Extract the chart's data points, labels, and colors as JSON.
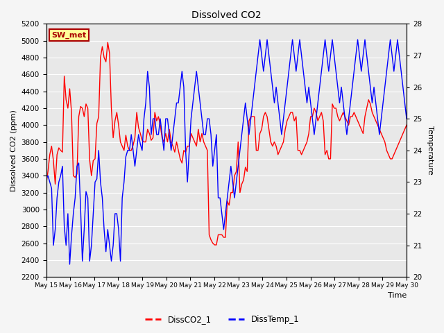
{
  "title": "Dissolved CO2",
  "xlabel": "Time",
  "ylabel_left": "Dissolved CO2 (ppm)",
  "ylabel_right": "Temperature",
  "legend_label": "SW_met",
  "series1_label": "DissCO2_1",
  "series2_label": "DissTemp_1",
  "series1_color": "#FF0000",
  "series2_color": "#0000FF",
  "ylim_left": [
    2200,
    5200
  ],
  "ylim_right": [
    20.0,
    28.0
  ],
  "yticks_left": [
    2200,
    2400,
    2600,
    2800,
    3000,
    3200,
    3400,
    3600,
    3800,
    4000,
    4200,
    4400,
    4600,
    4800,
    5000,
    5200
  ],
  "yticks_right": [
    20.0,
    21.0,
    22.0,
    23.0,
    24.0,
    25.0,
    26.0,
    27.0,
    28.0
  ],
  "background_color": "#e8e8e8",
  "grid_color": "#ffffff",
  "co2_data": [
    3300,
    3450,
    3650,
    3750,
    3580,
    3300,
    3650,
    3730,
    3700,
    3680,
    4580,
    4300,
    4200,
    4430,
    4150,
    3400,
    3380,
    3420,
    4100,
    4220,
    4200,
    4100,
    4250,
    4200,
    3590,
    3400,
    3580,
    3600,
    4020,
    4100,
    4800,
    4930,
    4800,
    4750,
    4980,
    4850,
    4200,
    3850,
    4050,
    4150,
    4000,
    3800,
    3750,
    3700,
    3880,
    3750,
    3700,
    3700,
    3760,
    3850,
    4150,
    3970,
    3900,
    3820,
    3800,
    3800,
    3950,
    3900,
    3820,
    3850,
    4150,
    4050,
    4100,
    4000,
    3850,
    3800,
    3900,
    3800,
    3950,
    3800,
    3750,
    3680,
    3800,
    3700,
    3600,
    3550,
    3700,
    3680,
    3750,
    3750,
    3900,
    3850,
    3800,
    3750,
    3950,
    3800,
    3900,
    3800,
    3750,
    3700,
    2700,
    2640,
    2600,
    2580,
    2580,
    2700,
    2700,
    2700,
    2670,
    2670,
    3100,
    3050,
    3200,
    3200,
    3400,
    3450,
    3800,
    3200,
    3300,
    3350,
    3500,
    3450,
    4050,
    4100,
    4100,
    4100,
    3700,
    3700,
    3900,
    3950,
    4100,
    4150,
    4100,
    3950,
    3800,
    3750,
    3800,
    3750,
    3650,
    3700,
    3750,
    3800,
    3950,
    4050,
    4100,
    4150,
    4150,
    4050,
    4100,
    3700,
    3700,
    3650,
    3700,
    3750,
    3800,
    3900,
    4100,
    4100,
    4200,
    4150,
    4050,
    4100,
    4150,
    4050,
    3650,
    3700,
    3600,
    3600,
    4250,
    4200,
    4200,
    4100,
    4050,
    4100,
    4150,
    4100,
    4050,
    4000,
    4100,
    4100,
    4150,
    4100,
    4050,
    4000,
    3950,
    3900,
    4100,
    4200,
    4300,
    4250,
    4150,
    4100,
    4050,
    4000,
    3950,
    3900,
    3850,
    3800,
    3700,
    3650,
    3600,
    3600,
    3650,
    3700,
    3750,
    3800,
    3850,
    3900,
    3950,
    4000
  ],
  "temp_data": [
    23.1,
    23.2,
    23.0,
    22.8,
    21.0,
    21.5,
    22.5,
    23.0,
    23.2,
    23.5,
    21.6,
    21.0,
    22.0,
    20.4,
    21.3,
    22.0,
    22.5,
    23.5,
    23.6,
    22.2,
    20.5,
    21.5,
    22.7,
    22.5,
    20.5,
    21.0,
    22.0,
    23.0,
    23.1,
    24.0,
    23.0,
    22.5,
    21.5,
    20.8,
    21.5,
    21.0,
    20.5,
    21.0,
    22.0,
    22.0,
    21.5,
    20.5,
    22.5,
    23.0,
    23.8,
    24.0,
    24.0,
    24.5,
    24.0,
    23.5,
    24.0,
    24.5,
    24.2,
    24.0,
    25.0,
    25.5,
    26.5,
    26.0,
    24.5,
    25.0,
    25.0,
    24.5,
    24.5,
    25.0,
    24.5,
    24.0,
    25.0,
    25.0,
    24.5,
    24.0,
    24.5,
    25.0,
    25.5,
    25.5,
    26.0,
    26.5,
    26.0,
    24.0,
    23.0,
    24.0,
    25.0,
    25.5,
    26.0,
    26.5,
    26.0,
    25.5,
    25.0,
    24.5,
    24.5,
    25.0,
    25.0,
    24.5,
    23.5,
    24.0,
    24.5,
    22.5,
    22.5,
    22.0,
    21.5,
    22.0,
    22.5,
    23.0,
    23.5,
    23.0,
    22.5,
    23.0,
    23.5,
    24.0,
    24.5,
    25.0,
    25.5,
    25.0,
    24.5,
    25.0,
    25.5,
    26.0,
    26.5,
    27.0,
    27.5,
    27.0,
    26.5,
    27.0,
    27.5,
    27.0,
    26.5,
    26.0,
    25.5,
    26.0,
    25.5,
    25.0,
    24.5,
    25.0,
    25.5,
    26.0,
    26.5,
    27.0,
    27.5,
    27.0,
    26.5,
    27.0,
    27.5,
    27.0,
    26.5,
    26.0,
    25.5,
    26.0,
    25.5,
    25.0,
    24.5,
    25.0,
    25.5,
    26.0,
    26.5,
    27.0,
    27.5,
    27.0,
    26.5,
    27.0,
    27.5,
    27.0,
    26.5,
    26.0,
    25.5,
    26.0,
    25.5,
    25.0,
    24.5,
    25.0,
    25.5,
    26.0,
    26.5,
    27.0,
    27.5,
    27.0,
    26.5,
    27.0,
    27.5,
    27.0,
    26.5,
    26.0,
    25.5,
    26.0,
    25.5,
    25.0,
    24.5,
    25.0,
    25.5,
    26.0,
    26.5,
    27.0,
    27.5,
    27.0,
    26.5,
    27.0,
    27.5,
    27.0,
    26.5,
    26.0,
    25.5,
    25.0
  ],
  "n_days": 16,
  "day_start": 15,
  "day_end": 30
}
